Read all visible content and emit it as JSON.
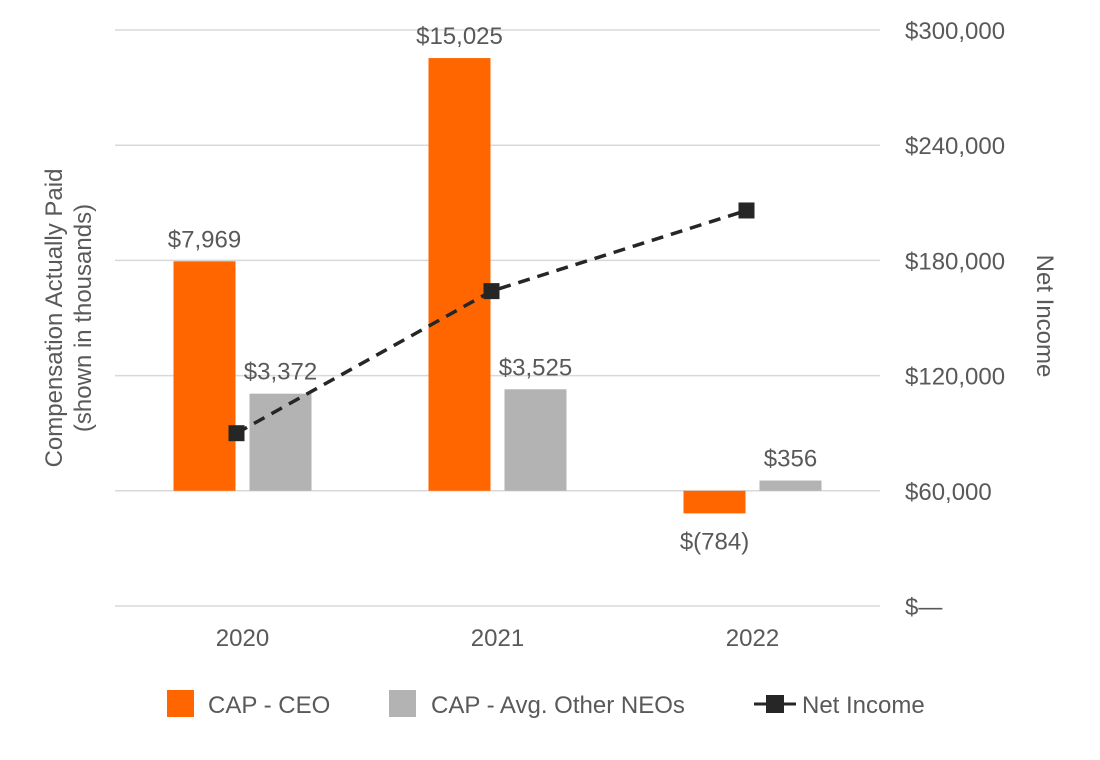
{
  "chart_data": {
    "type": "bar",
    "title": "",
    "categories": [
      "2020",
      "2021",
      "2022"
    ],
    "left_axis": {
      "label_line1": "Compensation Actually Paid",
      "label_line2": "(shown in thousands)",
      "ylim": [
        -4000,
        16000
      ]
    },
    "right_axis": {
      "label": "Net Income",
      "ylim": [
        0,
        300000
      ],
      "ticks": [
        {
          "value": 0,
          "label": "$—"
        },
        {
          "value": 60000,
          "label": "$60,000"
        },
        {
          "value": 120000,
          "label": "$120,000"
        },
        {
          "value": 180000,
          "label": "$180,000"
        },
        {
          "value": 240000,
          "label": "$240,000"
        },
        {
          "value": 300000,
          "label": "$300,000"
        }
      ]
    },
    "series": [
      {
        "name": "CAP - CEO",
        "kind": "bar",
        "axis": "left",
        "color": "#FF6600",
        "values": [
          7969,
          15025,
          -784
        ],
        "labels": [
          "$7,969",
          "$15,025",
          "$(784)"
        ]
      },
      {
        "name": "CAP - Avg. Other NEOs",
        "kind": "bar",
        "axis": "left",
        "color": "#B3B3B3",
        "values": [
          3372,
          3525,
          356
        ],
        "labels": [
          "$3,372",
          "$3,525",
          "$356"
        ]
      },
      {
        "name": "Net Income",
        "kind": "line",
        "axis": "right",
        "color": "#262626",
        "style": "dashed",
        "marker": "square",
        "values": [
          90000,
          164000,
          206000
        ]
      }
    ],
    "grid": true,
    "legend": "bottom"
  }
}
